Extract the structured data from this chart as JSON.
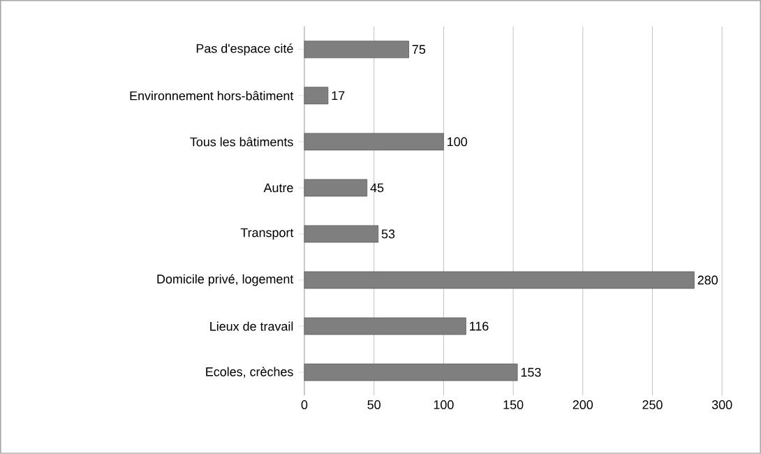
{
  "chart_data": {
    "type": "bar",
    "orientation": "horizontal",
    "categories": [
      "Pas d'espace cité",
      "Environnement hors-bâtiment",
      "Tous les bâtiments",
      "Autre",
      "Transport",
      "Domicile privé, logement",
      "Lieux de travail",
      "Ecoles, crèches"
    ],
    "values": [
      75,
      17,
      100,
      45,
      53,
      280,
      116,
      153
    ],
    "color": "#7f7f7f",
    "xlim": [
      0,
      300
    ],
    "xticks": [
      0,
      50,
      100,
      150,
      200,
      250,
      300
    ],
    "grid": "x",
    "data_labels": true
  }
}
